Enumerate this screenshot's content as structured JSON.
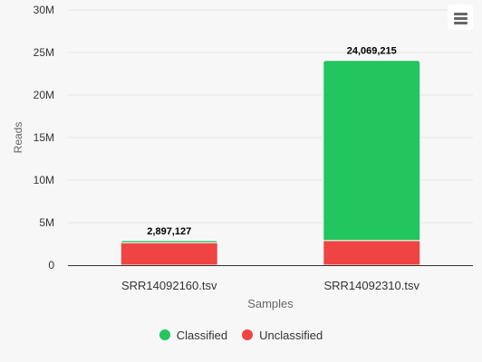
{
  "chart_data": {
    "type": "bar",
    "stacked": true,
    "categories": [
      "SRR14092160.tsv",
      "SRR14092310.tsv"
    ],
    "series": [
      {
        "name": "Classified",
        "color": "#22c55e",
        "values": [
          250000,
          21169215
        ]
      },
      {
        "name": "Unclassified",
        "color": "#ef4444",
        "values": [
          2647127,
          2900000
        ]
      }
    ],
    "totals": [
      2897127,
      24069215
    ],
    "total_labels": [
      "2,897,127",
      "24,069,215"
    ],
    "xlabel": "Samples",
    "ylabel": "Reads",
    "ylim": [
      0,
      30000000
    ],
    "yticks": [
      0,
      5000000,
      10000000,
      15000000,
      20000000,
      25000000,
      30000000
    ],
    "ytick_labels": [
      "0",
      "5M",
      "10M",
      "15M",
      "20M",
      "25M",
      "30M"
    ],
    "grid": true,
    "legend": "bottom-center"
  },
  "ui": {
    "menu_icon": "hamburger-menu-icon"
  }
}
